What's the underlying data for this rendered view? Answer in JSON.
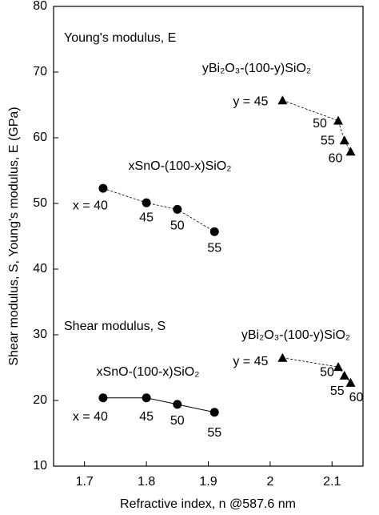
{
  "chart_data": {
    "type": "scatter",
    "xlabel": "Refractive index, n @587.6 nm",
    "ylabel": "Shear modulus, S, Young's modulus, E (GPa)",
    "annotations": [
      "Young's modulus, E",
      "Shear modulus, S"
    ],
    "xlim": [
      1.65,
      2.15
    ],
    "xticks": [
      1.7,
      1.8,
      1.9,
      2.0,
      2.1
    ],
    "ylim": [
      10,
      80
    ],
    "yticks": [
      10,
      20,
      30,
      40,
      50,
      60,
      70,
      80
    ],
    "series": [
      {
        "name": "xSnO-(100-x)SiO₂",
        "color": "#000000",
        "marker": "circle",
        "line_style": "dashed",
        "x": [
          1.73,
          1.8,
          1.85,
          1.91
        ],
        "values": [
          52.3,
          50.1,
          49.1,
          45.7
        ],
        "point_labels": [
          "x = 40",
          "45",
          "50",
          "55"
        ]
      },
      {
        "name": "yBi₂O₃-(100-y)SiO₂",
        "color": "#000000",
        "marker": "triangle",
        "line_style": "dashed",
        "x": [
          2.02,
          2.11,
          2.12,
          2.13
        ],
        "values": [
          65.7,
          62.6,
          59.6,
          57.9
        ],
        "point_labels": [
          "y = 45",
          "50",
          "55",
          "60"
        ]
      },
      {
        "name": "xSnO-(100-x)SiO₂",
        "color": "#000000",
        "marker": "circle",
        "line_style": "solid",
        "x": [
          1.73,
          1.8,
          1.85,
          1.91
        ],
        "values": [
          20.4,
          20.4,
          19.4,
          18.2
        ],
        "point_labels": [
          "x = 40",
          "45",
          "50",
          "55"
        ]
      },
      {
        "name": "yBi₂O₃-(100-y)SiO₂",
        "color": "#000000",
        "marker": "triangle",
        "line_style": "dashed",
        "x": [
          2.02,
          2.11,
          2.12,
          2.13
        ],
        "values": [
          26.5,
          25.1,
          23.8,
          22.7
        ],
        "point_labels": [
          "y = 45",
          "50",
          "55",
          "60"
        ]
      }
    ]
  }
}
